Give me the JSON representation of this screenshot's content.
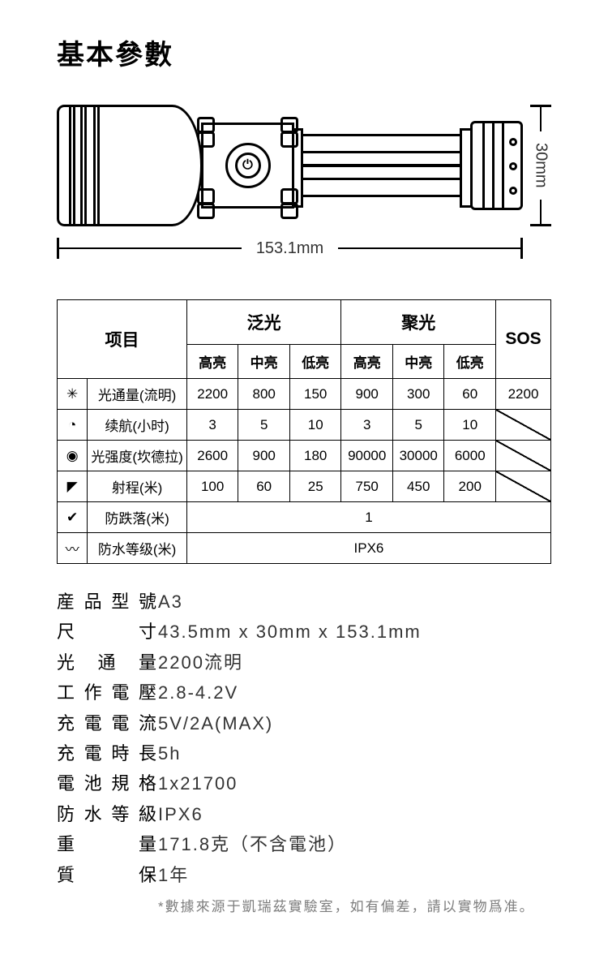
{
  "title": "基本參數",
  "diagram": {
    "length_label": "153.1mm",
    "diameter_label": "30mm"
  },
  "table": {
    "header": {
      "item": "项目",
      "flood": "泛光",
      "spot": "聚光",
      "sos": "SOS"
    },
    "sub": {
      "high": "高亮",
      "mid": "中亮",
      "low": "低亮"
    },
    "rows": [
      {
        "icon": "✳",
        "label": "光通量(流明)",
        "cells": [
          "2200",
          "800",
          "150",
          "900",
          "300",
          "60",
          "2200"
        ]
      },
      {
        "icon": "◔",
        "label": "续航(小时)",
        "cells": [
          "3",
          "5",
          "10",
          "3",
          "5",
          "10",
          ""
        ],
        "sos_na": true
      },
      {
        "icon": "◉",
        "label": "光强度(坎德拉)",
        "cells": [
          "2600",
          "900",
          "180",
          "90000",
          "30000",
          "6000",
          ""
        ],
        "sos_na": true
      },
      {
        "icon": "◤",
        "label": "射程(米)",
        "cells": [
          "100",
          "60",
          "25",
          "750",
          "450",
          "200",
          ""
        ],
        "sos_na": true
      }
    ],
    "drop": {
      "icon": "✔",
      "label": "防跌落(米)",
      "value": "1"
    },
    "water": {
      "icon": "〰",
      "label": "防水等级(米)",
      "value": "IPX6"
    }
  },
  "specs": [
    {
      "k": "産品型號",
      "v": "A3"
    },
    {
      "k": "尺寸",
      "v": "43.5mm x 30mm x 153.1mm"
    },
    {
      "k": "光通量",
      "v": "2200流明"
    },
    {
      "k": "工作電壓",
      "v": "2.8-4.2V"
    },
    {
      "k": "充電電流",
      "v": "5V/2A(MAX)"
    },
    {
      "k": "充電時長",
      "v": "5h"
    },
    {
      "k": "電池規格",
      "v": "1x21700"
    },
    {
      "k": "防水等級",
      "v": "IPX6"
    },
    {
      "k": "重量",
      "v": "171.8克（不含電池）"
    },
    {
      "k": "質保",
      "v": "1年"
    }
  ],
  "footnote": "*數據來源于凱瑞茲實驗室，如有偏差，請以實物爲准。"
}
